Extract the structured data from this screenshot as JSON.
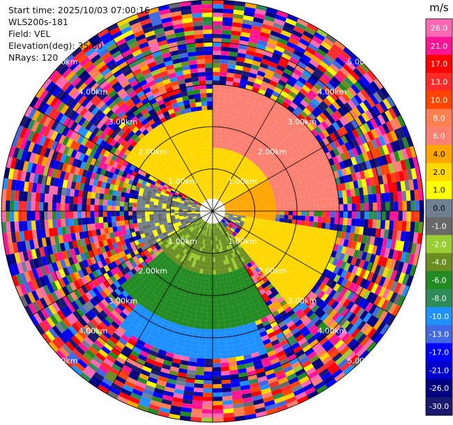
{
  "header": {
    "start_time": "Start time: 2025/10/03 07:00:16",
    "site": "WLS200s-181",
    "field": "Field: VEL",
    "elevation": "Elevation(deg): 35.00",
    "nrays": "NRays: 120"
  },
  "chart_data": {
    "type": "heatmap",
    "subtype": "ppi-polar",
    "field": "VEL",
    "units": "m/s",
    "n_rays": 120,
    "max_range_km": 5.0,
    "range_rings_km": [
      1.0,
      2.0,
      3.0,
      4.0,
      5.0
    ],
    "ring_labels": [
      "1.00km",
      "2.00km",
      "3.00km",
      "4.00km",
      "5.00km",
      "1.00km",
      "2.00km",
      "3.00km",
      "4.00km",
      "5.00km",
      "1.00km",
      "2.00km",
      "3.00km",
      "4.00km",
      "5.00km",
      "1.00km",
      "2.00km",
      "3.00km",
      "4.00km",
      "5.00km"
    ],
    "colorbar": {
      "title": "m/s",
      "tick_labels": [
        "26.0",
        "21.0",
        "17.0",
        "13.0",
        "10.0",
        "8.0",
        "6.0",
        "4.0",
        "2.0",
        "1.0",
        "0.0",
        "-1.0",
        "-2.0",
        "-4.0",
        "-6.0",
        "-8.0",
        "-10.0",
        "-13.0",
        "-17.0",
        "-21.0",
        "-26.0",
        "-30.0"
      ],
      "bounds": [
        30,
        26,
        21,
        17,
        13,
        10,
        8,
        6,
        4,
        2,
        1,
        0,
        -1,
        -2,
        -4,
        -6,
        -8,
        -10,
        -13,
        -17,
        -21,
        -26,
        -30
      ],
      "colors": [
        "#ff69b4",
        "#ff1493",
        "#ff0000",
        "#ff2a2a",
        "#ff4500",
        "#ff7f50",
        "#fa8072",
        "#ffa500",
        "#ffd700",
        "#ffff00",
        "#708090",
        "#696969",
        "#9acd32",
        "#6b8e23",
        "#228b22",
        "#2e8b57",
        "#1e90ff",
        "#4169e1",
        "#0000ff",
        "#0000cd",
        "#000080",
        "#191970"
      ]
    },
    "sectors": [
      {
        "az": [
          300,
          360
        ],
        "range_km": [
          0.3,
          2.4
        ],
        "value": 3.0
      },
      {
        "az": [
          0,
          60
        ],
        "range_km": [
          0.3,
          1.5
        ],
        "value": 3.0
      },
      {
        "az": [
          0,
          90
        ],
        "range_km": [
          1.5,
          3.0
        ],
        "value": 7.0
      },
      {
        "az": [
          60,
          100
        ],
        "range_km": [
          0.3,
          1.5
        ],
        "value": 5.0
      },
      {
        "az": [
          100,
          140
        ],
        "range_km": [
          0.8,
          3.0
        ],
        "value": 3.0
      },
      {
        "az": [
          90,
          120
        ],
        "range_km": [
          0.3,
          1.3
        ],
        "value": 0.5
      },
      {
        "az": [
          140,
          240
        ],
        "range_km": [
          0.3,
          1.5
        ],
        "value": -2.5
      },
      {
        "az": [
          150,
          230
        ],
        "range_km": [
          1.5,
          2.8
        ],
        "value": -5.0
      },
      {
        "az": [
          160,
          220
        ],
        "range_km": [
          2.8,
          3.5
        ],
        "value": -9.0
      },
      {
        "az": [
          240,
          290
        ],
        "range_km": [
          0.3,
          1.8
        ],
        "value": 0.5
      }
    ]
  }
}
